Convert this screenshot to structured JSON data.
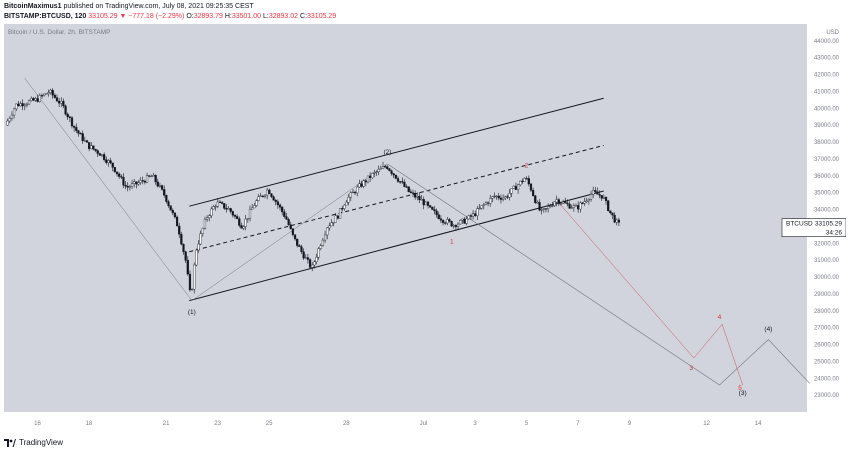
{
  "header": {
    "author": "BitcoinMaximus1",
    "published_text": "published on TradingView.com, July 08, 2021 09:25:35 CEST",
    "symbol": "BITSTAMP:BTCUSD, 120",
    "last": "33105.29",
    "change": "▼ −777.18 (−2.29%)",
    "o_label": "O:",
    "o_value": "32893.79",
    "h_label": "H:",
    "h_value": "33501.00",
    "l_label": "L:",
    "l_value": "32893.02",
    "c_label": "C:",
    "c_value": "33105.29"
  },
  "chart_data": {
    "type": "candlestick",
    "title": "Bitcoin / U.S. Dollar, 2h, BITSTAMP",
    "y_axis_unit": "USD",
    "ylim": [
      22000,
      45000
    ],
    "y_ticks": [
      23000,
      24000,
      25000,
      26000,
      27000,
      28000,
      29000,
      30000,
      31000,
      32000,
      33000,
      34000,
      35000,
      36000,
      37000,
      38000,
      39000,
      40000,
      41000,
      42000,
      43000,
      44000
    ],
    "x_ticks": [
      {
        "label": "16",
        "day": 16
      },
      {
        "label": "18",
        "day": 18
      },
      {
        "label": "21",
        "day": 21
      },
      {
        "label": "23",
        "day": 23
      },
      {
        "label": "25",
        "day": 25
      },
      {
        "label": "28",
        "day": 28
      },
      {
        "label": "Jul",
        "day": 31
      },
      {
        "label": "3",
        "day": 33
      },
      {
        "label": "5",
        "day": 35
      },
      {
        "label": "7",
        "day": 37
      },
      {
        "label": "9",
        "day": 39
      },
      {
        "label": "12",
        "day": 42
      },
      {
        "label": "14",
        "day": 44
      }
    ],
    "xlim": [
      14.7,
      45.9
    ],
    "last_price_label": "BTCUSD",
    "last_price_value": "33105.29",
    "countdown": "34:26",
    "price_path": [
      [
        14.8,
        39000
      ],
      [
        15.2,
        40200
      ],
      [
        16,
        40500
      ],
      [
        16.5,
        41000
      ],
      [
        17,
        40200
      ],
      [
        17.5,
        38800
      ],
      [
        18,
        37800
      ],
      [
        18.5,
        37300
      ],
      [
        19,
        36500
      ],
      [
        19.5,
        35300
      ],
      [
        20,
        35600
      ],
      [
        20.5,
        36000
      ],
      [
        21,
        34800
      ],
      [
        21.5,
        33000
      ],
      [
        21.8,
        31000
      ],
      [
        22.0,
        28700
      ],
      [
        22.2,
        31600
      ],
      [
        22.6,
        33500
      ],
      [
        23,
        34400
      ],
      [
        23.5,
        34000
      ],
      [
        24,
        33000
      ],
      [
        24.5,
        34400
      ],
      [
        25,
        35200
      ],
      [
        25.3,
        34500
      ],
      [
        25.7,
        33500
      ],
      [
        26,
        32300
      ],
      [
        26.3,
        31500
      ],
      [
        26.7,
        30500
      ],
      [
        27,
        31800
      ],
      [
        27.3,
        33000
      ],
      [
        27.7,
        33600
      ],
      [
        28,
        34500
      ],
      [
        28.5,
        35300
      ],
      [
        29,
        36000
      ],
      [
        29.6,
        36600
      ],
      [
        30,
        35900
      ],
      [
        30.5,
        35000
      ],
      [
        31,
        34500
      ],
      [
        31.3,
        34000
      ],
      [
        31.8,
        33400
      ],
      [
        32.2,
        33100
      ],
      [
        32.6,
        33300
      ],
      [
        33,
        33700
      ],
      [
        33.4,
        34300
      ],
      [
        33.8,
        34800
      ],
      [
        34.2,
        34700
      ],
      [
        34.6,
        35300
      ],
      [
        35,
        35900
      ],
      [
        35.2,
        35300
      ],
      [
        35.4,
        34500
      ],
      [
        35.6,
        33800
      ],
      [
        35.8,
        34000
      ],
      [
        36.2,
        34600
      ],
      [
        36.6,
        34300
      ],
      [
        37,
        34100
      ],
      [
        37.3,
        34500
      ],
      [
        37.6,
        35000
      ],
      [
        38,
        34800
      ],
      [
        38.3,
        33800
      ],
      [
        38.6,
        33100
      ]
    ],
    "lines": [
      {
        "name": "channel-upper",
        "style": "solid",
        "x1": 21.9,
        "y1": 34200,
        "x2": 38.0,
        "y2": 40600
      },
      {
        "name": "channel-mid",
        "style": "dashed",
        "x1": 21.9,
        "y1": 31500,
        "x2": 38.0,
        "y2": 37800
      },
      {
        "name": "channel-lower",
        "style": "solid",
        "x1": 21.9,
        "y1": 28600,
        "x2": 38.0,
        "y2": 35100
      },
      {
        "name": "trend-from-high",
        "style": "thin",
        "x1": 15.5,
        "y1": 41800,
        "x2": 22.0,
        "y2": 28600
      },
      {
        "name": "trend-to-2",
        "style": "thin",
        "x1": 22.0,
        "y1": 28600,
        "x2": 29.6,
        "y2": 36700
      }
    ],
    "projection_black": [
      [
        29.6,
        36700
      ],
      [
        42.5,
        23600
      ],
      [
        44.4,
        26300
      ],
      [
        46.0,
        23700
      ]
    ],
    "projection_red": [
      [
        36.2,
        34500
      ],
      [
        41.5,
        25200
      ],
      [
        42.6,
        27200
      ],
      [
        43.4,
        23600
      ]
    ],
    "labels_black": [
      {
        "text": "(1)",
        "x": 22.0,
        "y": 27800
      },
      {
        "text": "(2)",
        "x": 29.6,
        "y": 37300
      },
      {
        "text": "(3)",
        "x": 43.4,
        "y": 23000
      },
      {
        "text": "(4)",
        "x": 44.4,
        "y": 26800
      }
    ],
    "labels_red": [
      {
        "text": "1",
        "x": 32.1,
        "y": 32000
      },
      {
        "text": "2",
        "x": 35.0,
        "y": 36500
      },
      {
        "text": "3",
        "x": 41.4,
        "y": 24500
      },
      {
        "text": "4",
        "x": 42.5,
        "y": 27500
      },
      {
        "text": "5",
        "x": 43.3,
        "y": 23300
      }
    ],
    "colors": {
      "background": "#d1d4dc",
      "candle": "#131722",
      "line": "#131722",
      "projection": "#6f7482",
      "projection_red": "#c8525a",
      "label_red": "#d32f2f",
      "axis_text": "#787b86"
    }
  },
  "footer": {
    "brand": "TradingView"
  }
}
